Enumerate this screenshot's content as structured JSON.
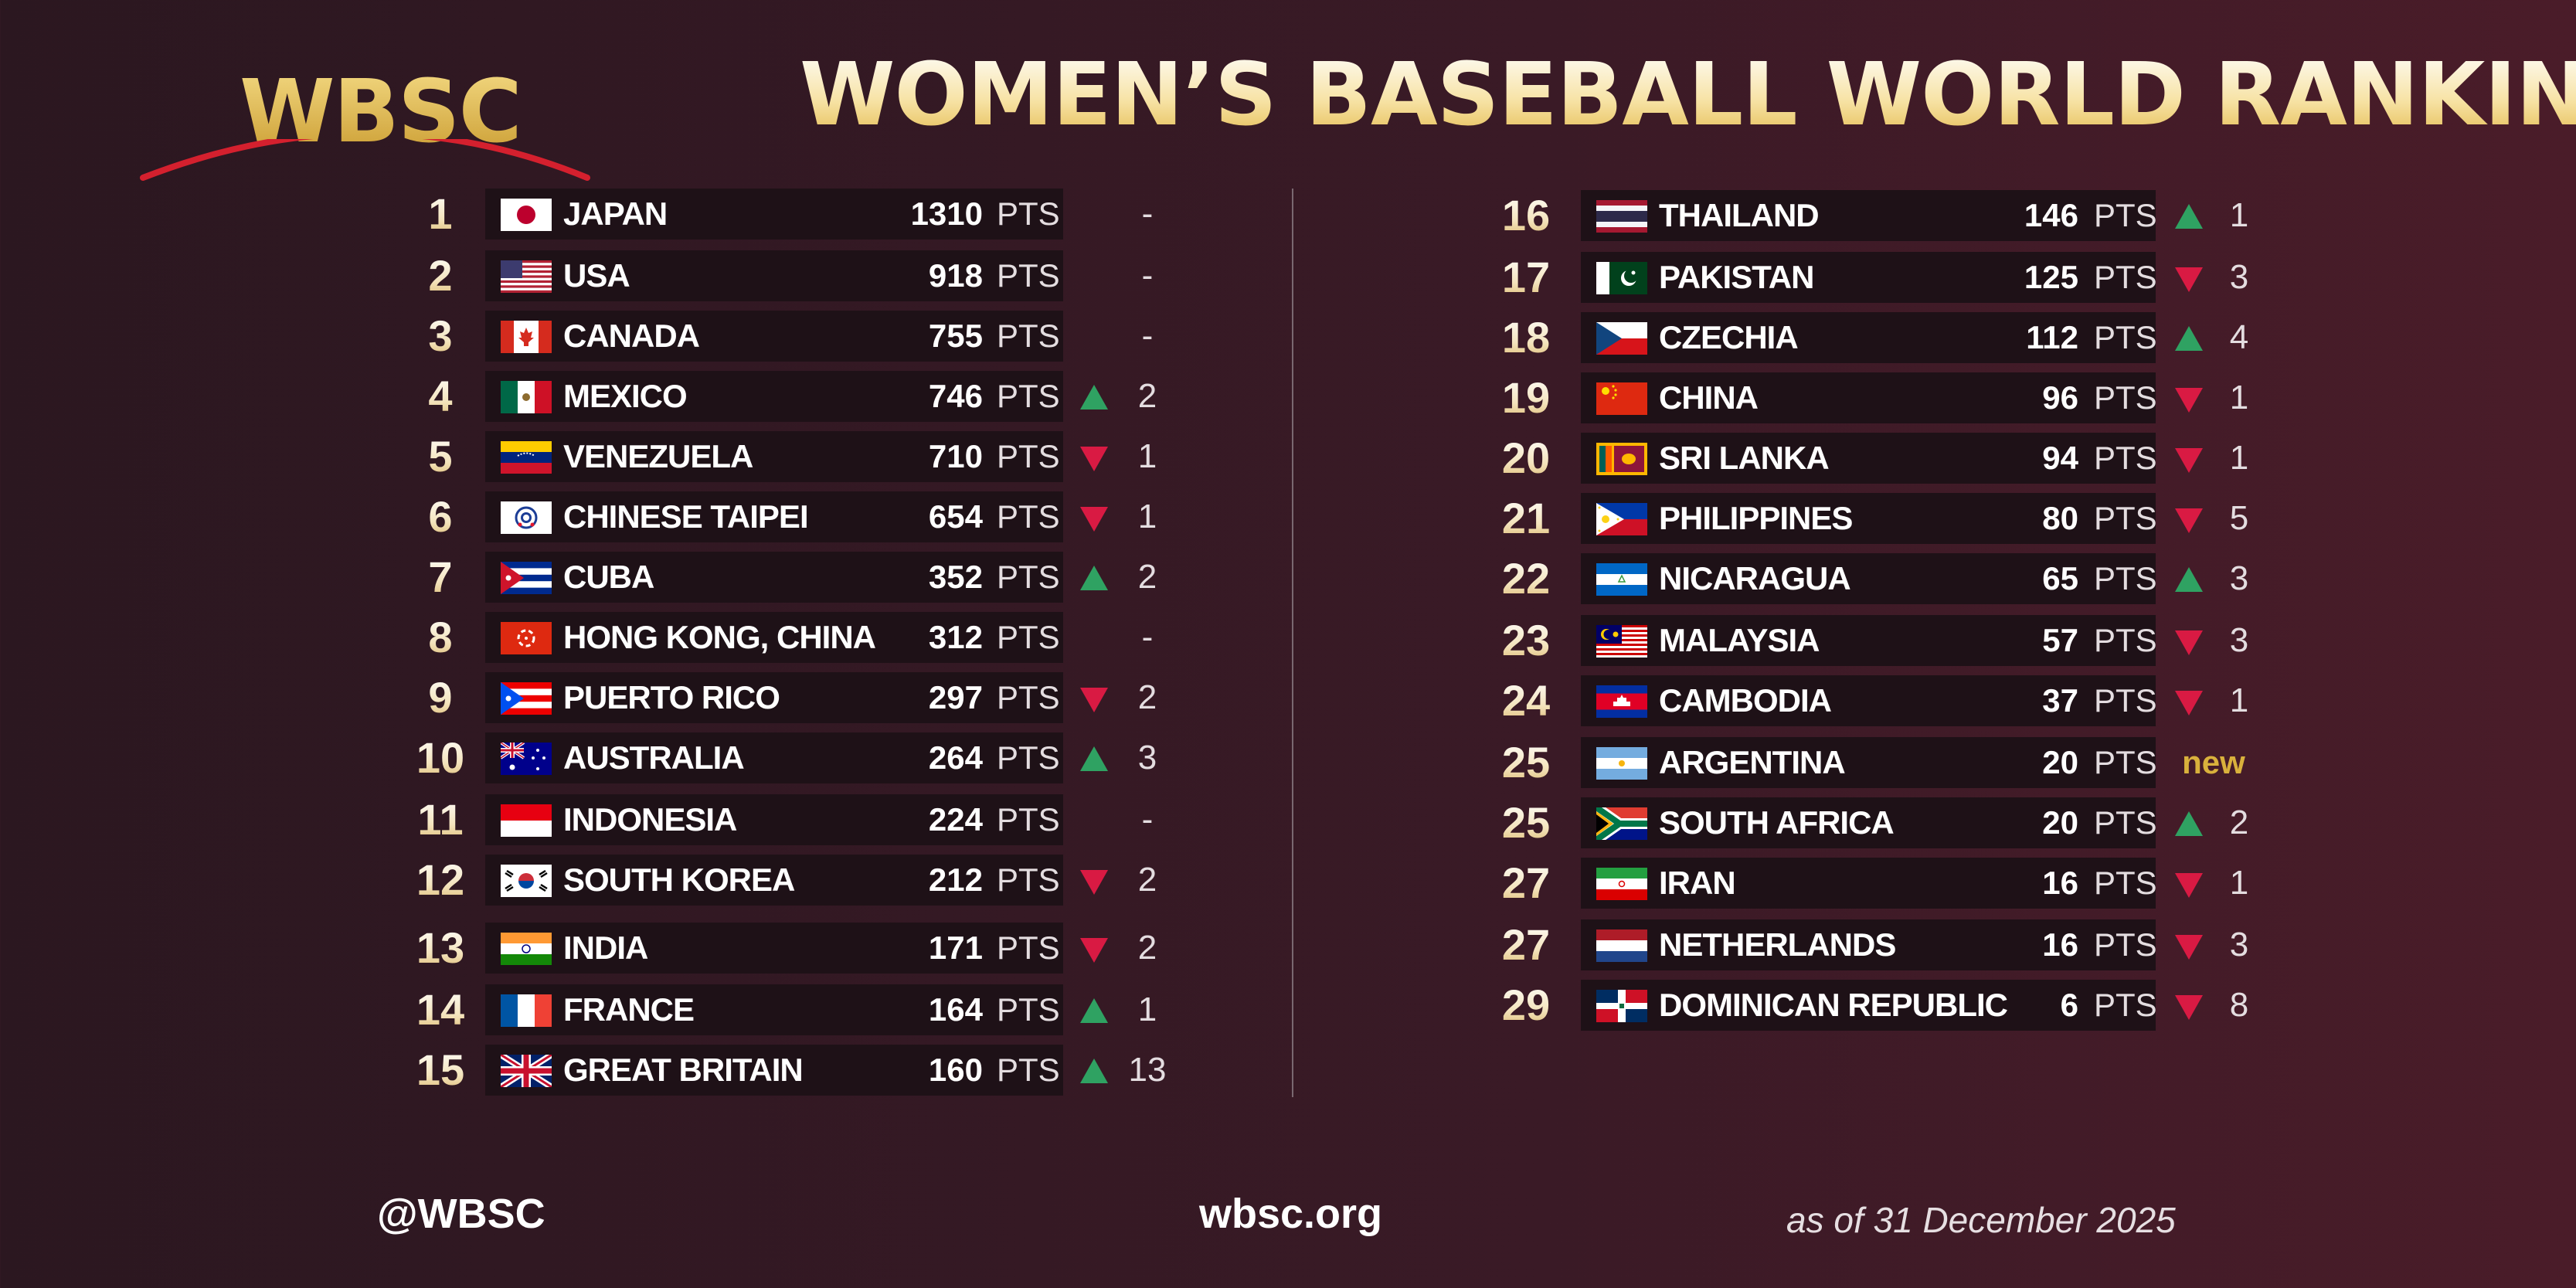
{
  "brand": {
    "logo_text": "WBSC"
  },
  "title": "WOMEN’S BASEBALL WORLD RANKING",
  "pts_unit": "PTS",
  "left_rows": [
    {
      "rank": "1",
      "name": "JAPAN",
      "points": "1310",
      "change": "-",
      "dir": "none",
      "flag": "jp"
    },
    {
      "rank": "2",
      "name": "USA",
      "points": "918",
      "change": "-",
      "dir": "none",
      "flag": "us"
    },
    {
      "rank": "3",
      "name": "CANADA",
      "points": "755",
      "change": "-",
      "dir": "none",
      "flag": "ca"
    },
    {
      "rank": "4",
      "name": "MEXICO",
      "points": "746",
      "change": "2",
      "dir": "up",
      "flag": "mx"
    },
    {
      "rank": "5",
      "name": "VENEZUELA",
      "points": "710",
      "change": "1",
      "dir": "down",
      "flag": "ve"
    },
    {
      "rank": "6",
      "name": "CHINESE TAIPEI",
      "points": "654",
      "change": "1",
      "dir": "down",
      "flag": "tpe"
    },
    {
      "rank": "7",
      "name": "CUBA",
      "points": "352",
      "change": "2",
      "dir": "up",
      "flag": "cu"
    },
    {
      "rank": "8",
      "name": "HONG KONG, CHINA",
      "points": "312",
      "change": "-",
      "dir": "none",
      "flag": "hk"
    },
    {
      "rank": "9",
      "name": "PUERTO RICO",
      "points": "297",
      "change": "2",
      "dir": "down",
      "flag": "pr"
    },
    {
      "rank": "10",
      "name": "AUSTRALIA",
      "points": "264",
      "change": "3",
      "dir": "up",
      "flag": "au"
    },
    {
      "rank": "11",
      "name": "INDONESIA",
      "points": "224",
      "change": "-",
      "dir": "none",
      "flag": "id"
    },
    {
      "rank": "12",
      "name": "SOUTH KOREA",
      "points": "212",
      "change": "2",
      "dir": "down",
      "flag": "kr"
    },
    {
      "rank": "13",
      "name": "INDIA",
      "points": "171",
      "change": "2",
      "dir": "down",
      "flag": "in"
    },
    {
      "rank": "14",
      "name": "FRANCE",
      "points": "164",
      "change": "1",
      "dir": "up",
      "flag": "fr"
    },
    {
      "rank": "15",
      "name": "GREAT BRITAIN",
      "points": "160",
      "change": "13",
      "dir": "up",
      "flag": "gb"
    }
  ],
  "right_rows": [
    {
      "rank": "16",
      "name": "THAILAND",
      "points": "146",
      "change": "1",
      "dir": "up",
      "flag": "th"
    },
    {
      "rank": "17",
      "name": "PAKISTAN",
      "points": "125",
      "change": "3",
      "dir": "down",
      "flag": "pk"
    },
    {
      "rank": "18",
      "name": "CZECHIA",
      "points": "112",
      "change": "4",
      "dir": "up",
      "flag": "cz"
    },
    {
      "rank": "19",
      "name": "CHINA",
      "points": "96",
      "change": "1",
      "dir": "down",
      "flag": "cn"
    },
    {
      "rank": "20",
      "name": "SRI LANKA",
      "points": "94",
      "change": "1",
      "dir": "down",
      "flag": "lk"
    },
    {
      "rank": "21",
      "name": "PHILIPPINES",
      "points": "80",
      "change": "5",
      "dir": "down",
      "flag": "ph"
    },
    {
      "rank": "22",
      "name": "NICARAGUA",
      "points": "65",
      "change": "3",
      "dir": "up",
      "flag": "ni"
    },
    {
      "rank": "23",
      "name": "MALAYSIA",
      "points": "57",
      "change": "3",
      "dir": "down",
      "flag": "my"
    },
    {
      "rank": "24",
      "name": "CAMBODIA",
      "points": "37",
      "change": "1",
      "dir": "down",
      "flag": "kh"
    },
    {
      "rank": "25",
      "name": "ARGENTINA",
      "points": "20",
      "change": "new",
      "dir": "new",
      "flag": "ar"
    },
    {
      "rank": "25",
      "name": "SOUTH AFRICA",
      "points": "20",
      "change": "2",
      "dir": "up",
      "flag": "za"
    },
    {
      "rank": "27",
      "name": "IRAN",
      "points": "16",
      "change": "1",
      "dir": "down",
      "flag": "ir"
    },
    {
      "rank": "27",
      "name": "NETHERLANDS",
      "points": "16",
      "change": "3",
      "dir": "down",
      "flag": "nl"
    },
    {
      "rank": "29",
      "name": "DOMINICAN REPUBLIC",
      "points": "6",
      "change": "8",
      "dir": "down",
      "flag": "do"
    }
  ],
  "footer": {
    "handle": "@WBSC",
    "website": "wbsc.org",
    "as_of": "as of 31 December 2025"
  }
}
